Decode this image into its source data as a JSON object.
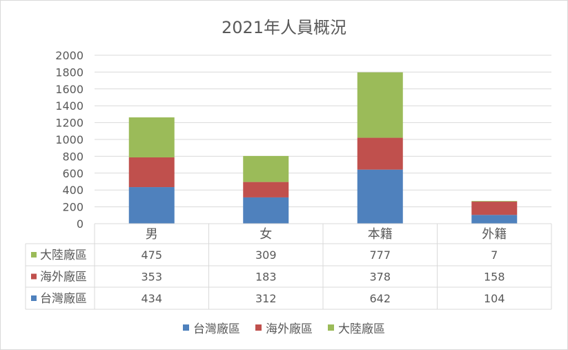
{
  "chart_data": {
    "type": "bar",
    "stacked": true,
    "title": "2021年人員概況",
    "categories": [
      "男",
      "女",
      "本籍",
      "外籍"
    ],
    "series": [
      {
        "name": "台灣廠區",
        "color": "#4f81bd",
        "values": [
          434,
          312,
          642,
          104
        ]
      },
      {
        "name": "海外廠區",
        "color": "#c0504d",
        "values": [
          353,
          183,
          378,
          158
        ]
      },
      {
        "name": "大陸廠區",
        "color": "#9bbb59",
        "values": [
          475,
          309,
          777,
          7
        ]
      }
    ],
    "ylim": [
      0,
      2000
    ],
    "yticks": [
      0,
      200,
      400,
      600,
      800,
      1000,
      1200,
      1400,
      1600,
      1800,
      2000
    ],
    "grid": true,
    "legend_position": "bottom",
    "data_table": true
  }
}
